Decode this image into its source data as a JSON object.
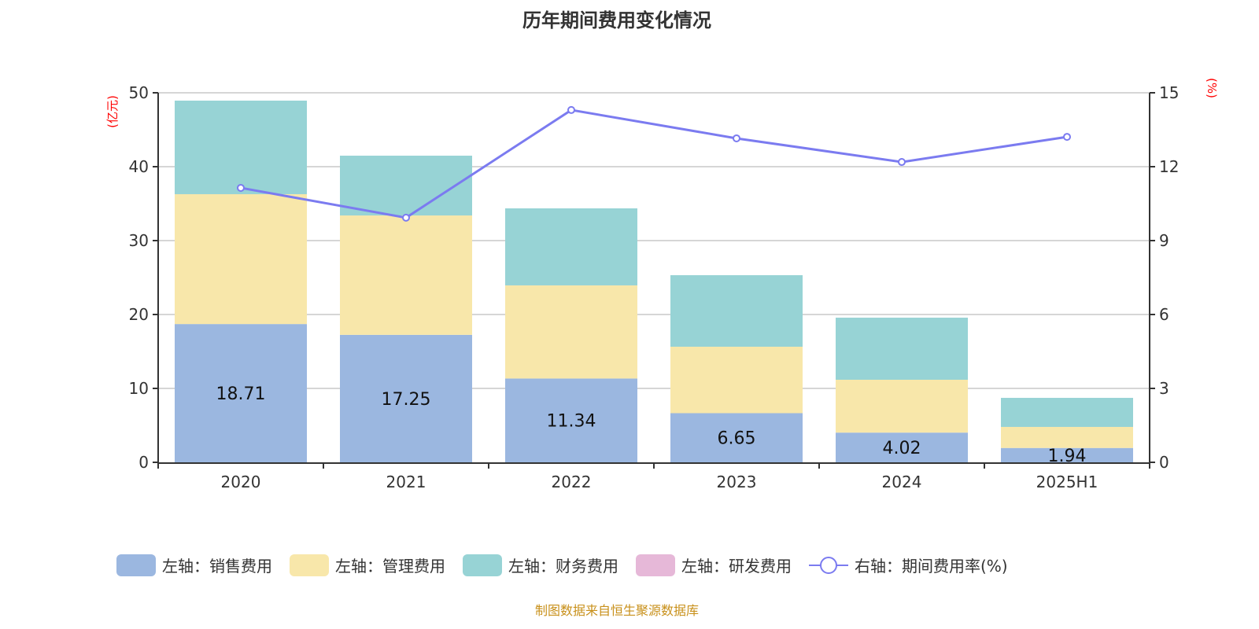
{
  "chart_data": {
    "type": "bar",
    "title": "历年期间费用变化情况",
    "categories": [
      "2020",
      "2021",
      "2022",
      "2023",
      "2024",
      "2025H1"
    ],
    "left_axis": {
      "label": "(亿元)",
      "range": [
        0,
        50
      ],
      "ticks": [
        0,
        10,
        20,
        30,
        40,
        50
      ]
    },
    "right_axis": {
      "label": "(%)",
      "range": [
        0,
        15
      ],
      "ticks": [
        0,
        3,
        6,
        9,
        12,
        15
      ]
    },
    "series": [
      {
        "name": "左轴：销售费用",
        "type": "bar",
        "color": "#9bb7e0",
        "values": [
          18.71,
          17.25,
          11.34,
          6.65,
          4.02,
          1.94
        ],
        "labels": [
          "18.71",
          "17.25",
          "11.34",
          "6.65",
          "4.02",
          "1.94"
        ]
      },
      {
        "name": "左轴：管理费用",
        "type": "bar",
        "color": "#f8e7aa",
        "values": [
          17.57,
          16.15,
          12.6,
          8.99,
          7.15,
          2.85
        ]
      },
      {
        "name": "左轴：财务费用",
        "type": "bar",
        "color": "#97d3d5",
        "values": [
          12.66,
          8.09,
          10.42,
          9.68,
          8.4,
          3.93
        ]
      },
      {
        "name": "左轴：研发费用",
        "type": "bar",
        "color": "#e6b8d8",
        "values": [
          null,
          null,
          null,
          null,
          null,
          null
        ]
      },
      {
        "name": "右轴：期间费用率(%)",
        "type": "line",
        "color": "#7b7bf0",
        "values": [
          11.14,
          9.93,
          14.3,
          13.15,
          12.19,
          13.21
        ]
      }
    ],
    "grid": true,
    "legend_position": "bottom"
  },
  "source": "制图数据来自恒生聚源数据库"
}
